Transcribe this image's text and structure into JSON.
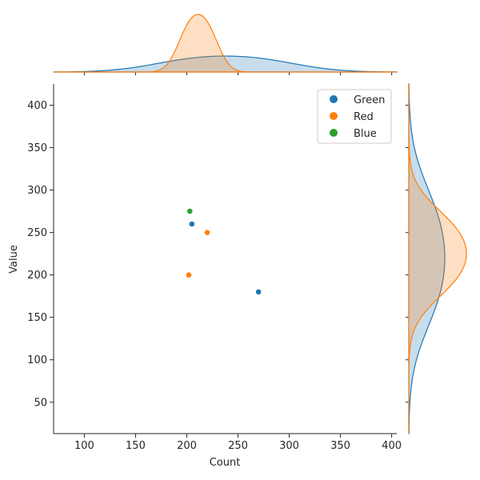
{
  "chart_data": {
    "type": "scatter",
    "subtype": "joint-plot-with-marginal-kde",
    "xlabel": "Count",
    "ylabel": "Value",
    "xlim": [
      70,
      405
    ],
    "ylim": [
      13,
      425
    ],
    "x_ticks": [
      100,
      150,
      200,
      250,
      300,
      350,
      400
    ],
    "y_ticks": [
      50,
      100,
      150,
      200,
      250,
      300,
      350,
      400
    ],
    "legend_position": "top-right",
    "series": [
      {
        "name": "Green",
        "color": "#1f77b4",
        "points": [
          {
            "x": 205,
            "y": 260
          },
          {
            "x": 270,
            "y": 180
          }
        ]
      },
      {
        "name": "Red",
        "color": "#ff7f0e",
        "points": [
          {
            "x": 220,
            "y": 250
          },
          {
            "x": 202,
            "y": 200
          }
        ]
      },
      {
        "name": "Blue",
        "color": "#2ca02c",
        "points": [
          {
            "x": 203,
            "y": 275
          }
        ]
      }
    ]
  }
}
